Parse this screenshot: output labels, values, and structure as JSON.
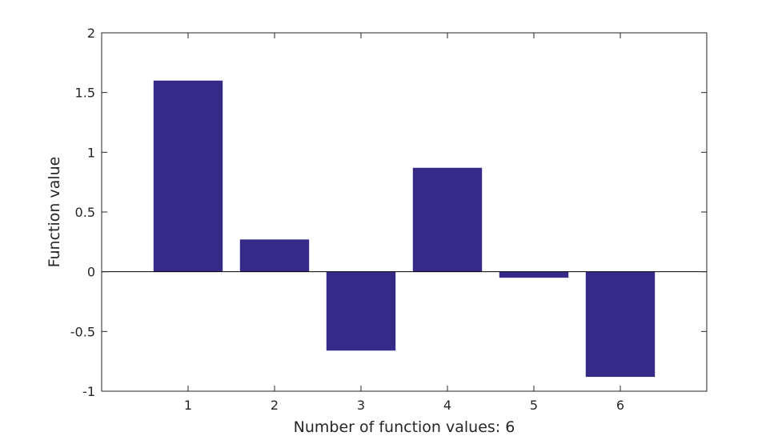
{
  "chart_data": {
    "type": "bar",
    "title": "",
    "xlabel": "Number of function values: 6",
    "ylabel": "Function value",
    "categories": [
      "1",
      "2",
      "3",
      "4",
      "5",
      "6"
    ],
    "values": [
      1.6,
      0.27,
      -0.66,
      0.87,
      -0.05,
      -0.88
    ],
    "ylim": [
      -1,
      2
    ],
    "xlim": [
      0,
      7
    ],
    "yticks": [
      "-1",
      "-0.5",
      "0",
      "0.5",
      "1",
      "1.5",
      "2"
    ],
    "ytick_values": [
      -1,
      -0.5,
      0,
      0.5,
      1,
      1.5,
      2
    ],
    "bar_color": "#352a87",
    "grid": false,
    "legend": "none"
  }
}
